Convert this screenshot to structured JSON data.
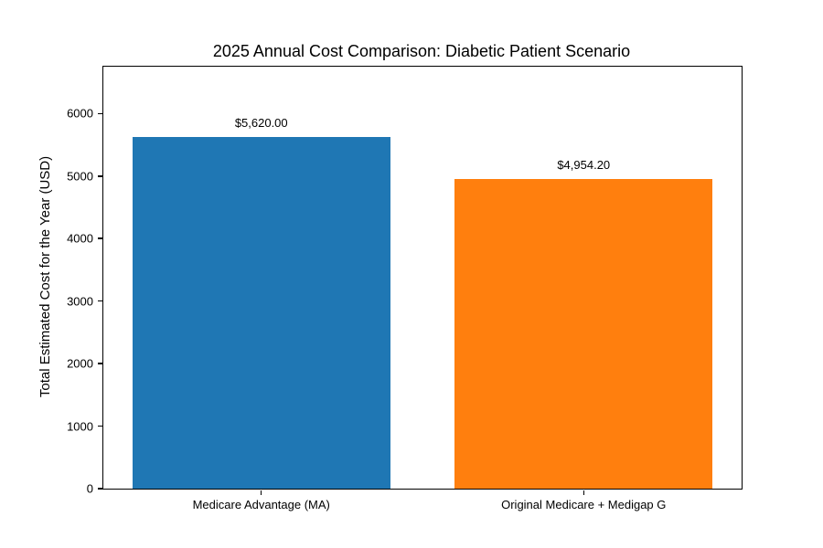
{
  "figure": {
    "background": "#ffffff",
    "text_color": "#000000",
    "axis_color": "#000000"
  },
  "chart_data": {
    "type": "bar",
    "title": "2025 Annual Cost Comparison: Diabetic Patient Scenario",
    "xlabel": "",
    "ylabel": "Total Estimated Cost for the Year (USD)",
    "categories": [
      "Medicare Advantage (MA)",
      "Original Medicare + Medigap G"
    ],
    "values": [
      5620.0,
      4954.2
    ],
    "value_labels": [
      "$5,620.00",
      "$4,954.20"
    ],
    "bar_colors": [
      "#1f77b4",
      "#ff7f0e"
    ],
    "yticks": [
      0,
      1000,
      2000,
      3000,
      4000,
      5000,
      6000
    ],
    "ylim": [
      0,
      6750
    ],
    "bar_width": 0.8,
    "x_margin": 0.49,
    "grid": false,
    "legend": "none"
  }
}
